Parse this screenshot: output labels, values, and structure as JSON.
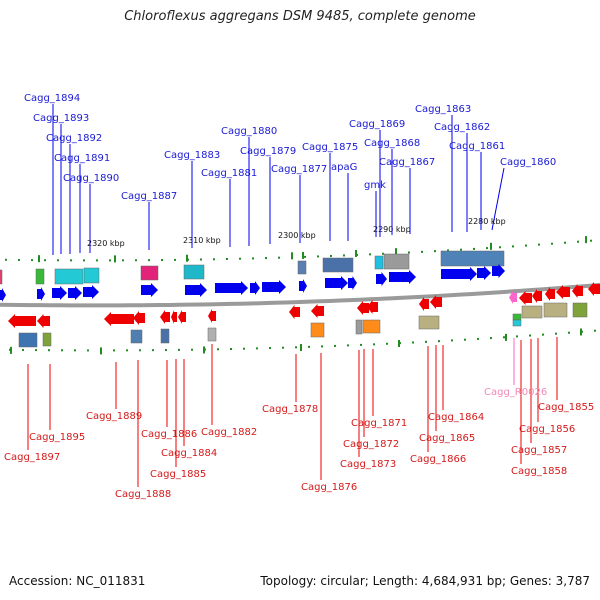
{
  "title": "Chloroflexus aggregans DSM 9485, complete genome",
  "accession": "Accession: NC_011831",
  "summary": "Topology: circular; Length: 4,684,931 bp; Genes: 3,787",
  "colors": {
    "forward": "#0000ee",
    "reverse": "#ee0000",
    "rna": "#ff66cc",
    "backbone": "#999999",
    "forward_label": "#1a1ad6",
    "reverse_label": "#d41a1a",
    "tick": "#228b22"
  },
  "scale_ticks": [
    "2320 kbp",
    "2310 kbp",
    "2300 kbp",
    "2290 kbp",
    "2280 kbp"
  ],
  "forward_genes": [
    "Cagg_1894",
    "Cagg_1893",
    "Cagg_1892",
    "Cagg_1891",
    "Cagg_1890",
    "Cagg_1887",
    "Cagg_1883",
    "Cagg_1881",
    "Cagg_1880",
    "Cagg_1879",
    "Cagg_1877",
    "Cagg_1875",
    "apaG",
    "Cagg_1869",
    "Cagg_1868",
    "gmk",
    "Cagg_1867",
    "Cagg_1863",
    "Cagg_1862",
    "Cagg_1861",
    "Cagg_1860"
  ],
  "reverse_genes": [
    "Cagg_1895",
    "Cagg_1897",
    "Cagg_1889",
    "Cagg_1888",
    "Cagg_1886",
    "Cagg_1884",
    "Cagg_1885",
    "Cagg_1882",
    "Cagg_1878",
    "Cagg_1876",
    "Cagg_1871",
    "Cagg_1872",
    "Cagg_1873",
    "Cagg_1864",
    "Cagg_1865",
    "Cagg_1866",
    "Cagg_1855",
    "Cagg_1856",
    "Cagg_1857",
    "Cagg_1858"
  ],
  "rna_genes": [
    "Cagg_R0026"
  ]
}
